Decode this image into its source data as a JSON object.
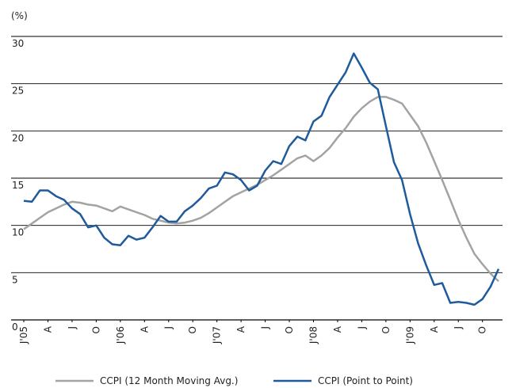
{
  "chart_data": {
    "type": "line",
    "y_label": "(%)",
    "categories": [
      "J'05",
      null,
      null,
      "A",
      null,
      null,
      "J",
      null,
      null,
      "O",
      null,
      null,
      "J'06",
      null,
      null,
      "A",
      null,
      null,
      "J",
      null,
      null,
      "O",
      null,
      null,
      "J'07",
      null,
      null,
      "A",
      null,
      null,
      "J",
      null,
      null,
      "O",
      null,
      null,
      "J'08",
      null,
      null,
      "A",
      null,
      null,
      "J",
      null,
      null,
      "O",
      null,
      null,
      "J'09",
      null,
      null,
      "A",
      null,
      null,
      "J",
      null,
      null,
      "O",
      null,
      null
    ],
    "series": [
      {
        "name": "CCPI (12 Month Moving Avg.)",
        "color": "#a3a3a3",
        "values": [
          9.6,
          10.2,
          10.8,
          11.4,
          11.8,
          12.2,
          12.5,
          12.4,
          12.2,
          12.1,
          11.8,
          11.5,
          12.0,
          11.7,
          11.4,
          11.1,
          10.7,
          10.5,
          10.3,
          10.2,
          10.3,
          10.5,
          10.8,
          11.3,
          11.9,
          12.5,
          13.1,
          13.5,
          13.9,
          14.3,
          14.8,
          15.3,
          15.9,
          16.5,
          17.1,
          17.4,
          16.8,
          17.4,
          18.2,
          19.3,
          20.3,
          21.5,
          22.4,
          23.1,
          23.6,
          23.6,
          23.3,
          22.9,
          21.7,
          20.5,
          18.8,
          16.8,
          14.8,
          12.7,
          10.6,
          8.7,
          7.0,
          5.9,
          4.9,
          4.1
        ]
      },
      {
        "name": "CCPI (Point to Point)",
        "color": "#1f5b9c",
        "values": [
          12.6,
          12.5,
          13.7,
          13.7,
          13.1,
          12.7,
          11.8,
          11.2,
          9.8,
          10.0,
          8.7,
          8.0,
          7.9,
          8.9,
          8.5,
          8.7,
          9.8,
          11.0,
          10.4,
          10.4,
          11.5,
          12.1,
          12.9,
          13.9,
          14.2,
          15.6,
          15.4,
          14.8,
          13.7,
          14.2,
          15.8,
          16.8,
          16.5,
          18.4,
          19.4,
          19.0,
          21.0,
          21.6,
          23.6,
          24.9,
          26.2,
          28.2,
          26.7,
          25.1,
          24.4,
          20.5,
          16.7,
          14.8,
          11.2,
          8.1,
          5.8,
          3.7,
          3.9,
          1.8,
          1.9,
          1.8,
          1.6,
          2.2,
          3.5,
          5.4
        ]
      }
    ],
    "ylim": [
      0,
      30
    ],
    "yticks": [
      0,
      5,
      10,
      15,
      20,
      25,
      30
    ],
    "grid": true
  }
}
